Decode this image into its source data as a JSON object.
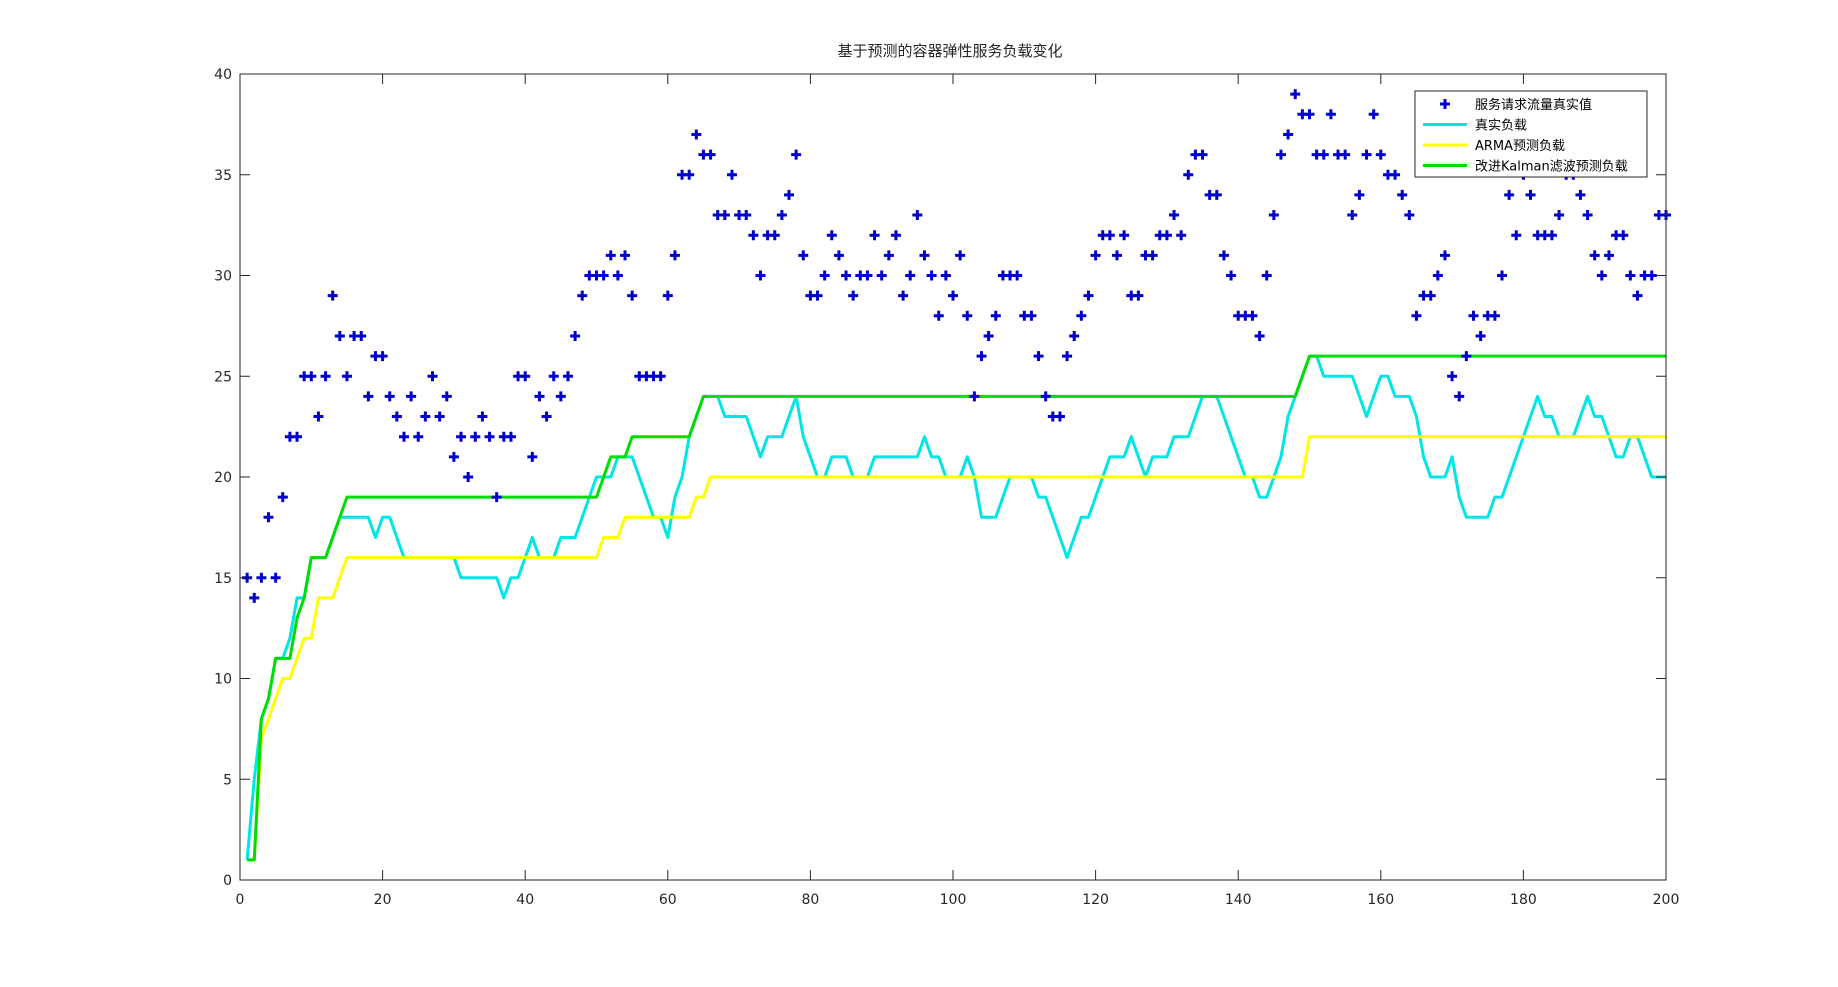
{
  "chart_data": {
    "type": "line",
    "title": "基于预测的容器弹性服务负载变化",
    "xlabel": "",
    "ylabel": "",
    "xlim": [
      0,
      200
    ],
    "ylim": [
      0,
      40
    ],
    "xticks": [
      0,
      20,
      40,
      60,
      80,
      100,
      120,
      140,
      160,
      180,
      200
    ],
    "yticks": [
      0,
      5,
      10,
      15,
      20,
      25,
      30,
      35,
      40
    ],
    "grid": false,
    "legend_position": "top-right",
    "x": [
      1,
      2,
      3,
      4,
      5,
      6,
      7,
      8,
      9,
      10,
      11,
      12,
      13,
      14,
      15,
      16,
      17,
      18,
      19,
      20,
      21,
      22,
      23,
      24,
      25,
      26,
      27,
      28,
      29,
      30,
      31,
      32,
      33,
      34,
      35,
      36,
      37,
      38,
      39,
      40,
      41,
      42,
      43,
      44,
      45,
      46,
      47,
      48,
      49,
      50,
      51,
      52,
      53,
      54,
      55,
      56,
      57,
      58,
      59,
      60,
      61,
      62,
      63,
      64,
      65,
      66,
      67,
      68,
      69,
      70,
      71,
      72,
      73,
      74,
      75,
      76,
      77,
      78,
      79,
      80,
      81,
      82,
      83,
      84,
      85,
      86,
      87,
      88,
      89,
      90,
      91,
      92,
      93,
      94,
      95,
      96,
      97,
      98,
      99,
      100,
      101,
      102,
      103,
      104,
      105,
      106,
      107,
      108,
      109,
      110,
      111,
      112,
      113,
      114,
      115,
      116,
      117,
      118,
      119,
      120,
      121,
      122,
      123,
      124,
      125,
      126,
      127,
      128,
      129,
      130,
      131,
      132,
      133,
      134,
      135,
      136,
      137,
      138,
      139,
      140,
      141,
      142,
      143,
      144,
      145,
      146,
      147,
      148,
      149,
      150,
      151,
      152,
      153,
      154,
      155,
      156,
      157,
      158,
      159,
      160,
      161,
      162,
      163,
      164,
      165,
      166,
      167,
      168,
      169,
      170,
      171,
      172,
      173,
      174,
      175,
      176,
      177,
      178,
      179,
      180,
      181,
      182,
      183,
      184,
      185,
      186,
      187,
      188,
      189,
      190,
      191,
      192,
      193,
      194,
      195,
      196,
      197,
      198,
      199,
      200
    ],
    "series": [
      {
        "name": "服务请求流量真实值",
        "style": "marker-plus",
        "color": "#0000cc",
        "values": [
          15,
          14,
          15,
          18,
          15,
          19,
          22,
          22,
          25,
          25,
          23,
          25,
          29,
          27,
          25,
          27,
          27,
          24,
          26,
          26,
          24,
          23,
          22,
          24,
          22,
          23,
          25,
          23,
          24,
          21,
          22,
          20,
          22,
          23,
          22,
          19,
          22,
          22,
          25,
          25,
          21,
          24,
          23,
          25,
          24,
          25,
          27,
          29,
          30,
          30,
          30,
          31,
          30,
          31,
          29,
          25,
          25,
          25,
          25,
          29,
          31,
          35,
          35,
          37,
          36,
          36,
          33,
          33,
          35,
          33,
          33,
          32,
          30,
          32,
          32,
          33,
          34,
          36,
          31,
          29,
          29,
          30,
          32,
          31,
          30,
          29,
          30,
          30,
          32,
          30,
          31,
          32,
          29,
          30,
          33,
          31,
          30,
          28,
          30,
          29,
          31,
          28,
          24,
          26,
          27,
          28,
          30,
          30,
          30,
          28,
          28,
          26,
          24,
          23,
          23,
          26,
          27,
          28,
          29,
          31,
          32,
          32,
          31,
          32,
          29,
          29,
          31,
          31,
          32,
          32,
          33,
          32,
          35,
          36,
          36,
          34,
          34,
          31,
          30,
          28,
          28,
          28,
          27,
          30,
          33,
          36,
          37,
          39,
          38,
          38,
          36,
          36,
          38,
          36,
          36,
          33,
          34,
          36,
          38,
          36,
          35,
          35,
          34,
          33,
          28,
          29,
          29,
          30,
          31,
          25,
          24,
          26,
          28,
          27,
          28,
          28,
          30,
          34,
          32,
          35,
          34,
          32,
          32,
          32,
          33,
          35,
          35,
          34,
          33,
          31,
          30,
          31,
          32,
          32,
          30,
          29,
          30,
          30,
          33,
          33
        ]
      },
      {
        "name": "真实负载",
        "style": "line",
        "color": "#00e5e5",
        "values": [
          1,
          5,
          8,
          9,
          11,
          11,
          12,
          14,
          14,
          16,
          16,
          16,
          17,
          18,
          18,
          18,
          18,
          18,
          17,
          18,
          18,
          17,
          16,
          16,
          16,
          16,
          16,
          16,
          16,
          16,
          15,
          15,
          15,
          15,
          15,
          15,
          14,
          15,
          15,
          16,
          17,
          16,
          16,
          16,
          17,
          17,
          17,
          18,
          19,
          20,
          20,
          20,
          21,
          21,
          21,
          20,
          19,
          18,
          18,
          17,
          19,
          20,
          22,
          23,
          24,
          24,
          24,
          23,
          23,
          23,
          23,
          22,
          21,
          22,
          22,
          22,
          23,
          24,
          22,
          21,
          20,
          20,
          21,
          21,
          21,
          20,
          20,
          20,
          21,
          21,
          21,
          21,
          21,
          21,
          21,
          22,
          21,
          21,
          20,
          20,
          20,
          21,
          20,
          18,
          18,
          18,
          19,
          20,
          20,
          20,
          20,
          19,
          19,
          18,
          17,
          16,
          17,
          18,
          18,
          19,
          20,
          21,
          21,
          21,
          22,
          21,
          20,
          21,
          21,
          21,
          22,
          22,
          22,
          23,
          24,
          24,
          24,
          23,
          22,
          21,
          20,
          20,
          19,
          19,
          20,
          21,
          23,
          24,
          25,
          26,
          26,
          25,
          25,
          25,
          25,
          25,
          24,
          23,
          24,
          25,
          25,
          24,
          24,
          24,
          23,
          21,
          20,
          20,
          20,
          21,
          19,
          18,
          18,
          18,
          18,
          19,
          19,
          20,
          21,
          22,
          23,
          24,
          23,
          23,
          22,
          22,
          22,
          23,
          24,
          23,
          23,
          22,
          21,
          21,
          22,
          22,
          21,
          20,
          20,
          20
        ]
      },
      {
        "name": "ARMA预测负载",
        "style": "line",
        "color": "#ffff00",
        "values": [
          1,
          1,
          7,
          8,
          9,
          10,
          10,
          11,
          12,
          12,
          14,
          14,
          14,
          15,
          16,
          16,
          16,
          16,
          16,
          16,
          16,
          16,
          16,
          16,
          16,
          16,
          16,
          16,
          16,
          16,
          16,
          16,
          16,
          16,
          16,
          16,
          16,
          16,
          16,
          16,
          16,
          16,
          16,
          16,
          16,
          16,
          16,
          16,
          16,
          16,
          17,
          17,
          17,
          18,
          18,
          18,
          18,
          18,
          18,
          18,
          18,
          18,
          18,
          19,
          19,
          20,
          20,
          20,
          20,
          20,
          20,
          20,
          20,
          20,
          20,
          20,
          20,
          20,
          20,
          20,
          20,
          20,
          20,
          20,
          20,
          20,
          20,
          20,
          20,
          20,
          20,
          20,
          20,
          20,
          20,
          20,
          20,
          20,
          20,
          20,
          20,
          20,
          20,
          20,
          20,
          20,
          20,
          20,
          20,
          20,
          20,
          20,
          20,
          20,
          20,
          20,
          20,
          20,
          20,
          20,
          20,
          20,
          20,
          20,
          20,
          20,
          20,
          20,
          20,
          20,
          20,
          20,
          20,
          20,
          20,
          20,
          20,
          20,
          20,
          20,
          20,
          20,
          20,
          20,
          20,
          20,
          20,
          20,
          20,
          22,
          22,
          22,
          22,
          22,
          22,
          22,
          22,
          22,
          22,
          22,
          22,
          22,
          22,
          22,
          22,
          22,
          22,
          22,
          22,
          22,
          22,
          22,
          22,
          22,
          22,
          22,
          22,
          22,
          22,
          22,
          22,
          22,
          22,
          22,
          22,
          22,
          22,
          22,
          22,
          22,
          22,
          22,
          22,
          22,
          22,
          22,
          22,
          22,
          22,
          22
        ]
      },
      {
        "name": "改进Kalman滤波预测负载",
        "style": "line",
        "color": "#00dd00",
        "values": [
          1,
          1,
          8,
          9,
          11,
          11,
          11,
          13,
          14,
          16,
          16,
          16,
          17,
          18,
          19,
          19,
          19,
          19,
          19,
          19,
          19,
          19,
          19,
          19,
          19,
          19,
          19,
          19,
          19,
          19,
          19,
          19,
          19,
          19,
          19,
          19,
          19,
          19,
          19,
          19,
          19,
          19,
          19,
          19,
          19,
          19,
          19,
          19,
          19,
          19,
          20,
          21,
          21,
          21,
          22,
          22,
          22,
          22,
          22,
          22,
          22,
          22,
          22,
          23,
          24,
          24,
          24,
          24,
          24,
          24,
          24,
          24,
          24,
          24,
          24,
          24,
          24,
          24,
          24,
          24,
          24,
          24,
          24,
          24,
          24,
          24,
          24,
          24,
          24,
          24,
          24,
          24,
          24,
          24,
          24,
          24,
          24,
          24,
          24,
          24,
          24,
          24,
          24,
          24,
          24,
          24,
          24,
          24,
          24,
          24,
          24,
          24,
          24,
          24,
          24,
          24,
          24,
          24,
          24,
          24,
          24,
          24,
          24,
          24,
          24,
          24,
          24,
          24,
          24,
          24,
          24,
          24,
          24,
          24,
          24,
          24,
          24,
          24,
          24,
          24,
          24,
          24,
          24,
          24,
          24,
          24,
          24,
          24,
          25,
          26,
          26,
          26,
          26,
          26,
          26,
          26,
          26,
          26,
          26,
          26,
          26,
          26,
          26,
          26,
          26,
          26,
          26,
          26,
          26,
          26,
          26,
          26,
          26,
          26,
          26,
          26,
          26,
          26,
          26,
          26,
          26,
          26,
          26,
          26,
          26,
          26,
          26,
          26,
          26,
          26,
          26,
          26,
          26,
          26,
          26,
          26,
          26,
          26,
          26,
          26
        ]
      }
    ]
  }
}
